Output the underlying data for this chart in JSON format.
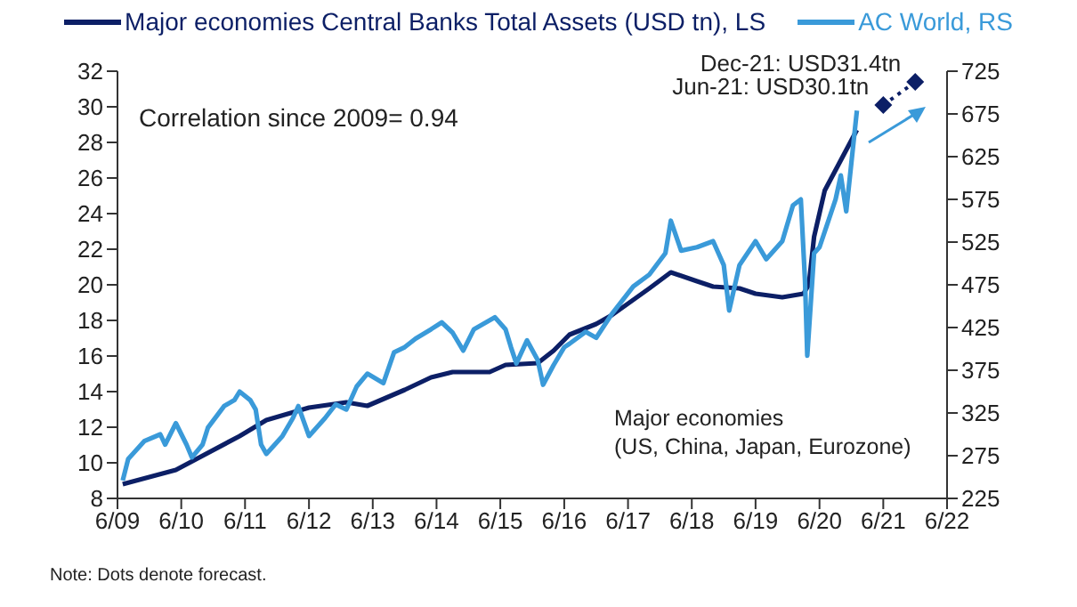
{
  "chart_data": {
    "type": "line",
    "xlim": [
      "2009-06",
      "2022-06"
    ],
    "xticks": [
      {
        "value": "2009-06",
        "label": "6/09"
      },
      {
        "value": "2010-06",
        "label": "6/10"
      },
      {
        "value": "2011-06",
        "label": "6/11"
      },
      {
        "value": "2012-06",
        "label": "6/12"
      },
      {
        "value": "2013-06",
        "label": "6/13"
      },
      {
        "value": "2014-06",
        "label": "6/14"
      },
      {
        "value": "2015-06",
        "label": "6/15"
      },
      {
        "value": "2016-06",
        "label": "6/16"
      },
      {
        "value": "2017-06",
        "label": "6/17"
      },
      {
        "value": "2018-06",
        "label": "6/18"
      },
      {
        "value": "2019-06",
        "label": "6/19"
      },
      {
        "value": "2020-06",
        "label": "6/20"
      },
      {
        "value": "2021-06",
        "label": "6/21"
      },
      {
        "value": "2022-06",
        "label": "6/22"
      }
    ],
    "ylim": [
      8,
      32
    ],
    "yticks": [
      8,
      10,
      12,
      14,
      16,
      18,
      20,
      22,
      24,
      26,
      28,
      30,
      32
    ],
    "y2lim": [
      225,
      725
    ],
    "y2ticks": [
      225,
      275,
      325,
      375,
      425,
      475,
      525,
      575,
      625,
      675,
      725
    ],
    "grid": false,
    "legend": "top",
    "series": [
      {
        "name": "Major economies Central Banks Total Assets (USD tn), LS",
        "color": "#0c1f66",
        "x": [
          "2009-07",
          "2010-05",
          "2011-05",
          "2011-10",
          "2012-06",
          "2013-01",
          "2013-05",
          "2013-12",
          "2014-05",
          "2014-09",
          "2015-04",
          "2015-07",
          "2016-01",
          "2016-04",
          "2016-07",
          "2016-12",
          "2017-03",
          "2017-10",
          "2018-02",
          "2018-07",
          "2018-10",
          "2019-03",
          "2019-06",
          "2019-11",
          "2020-03",
          "2020-04",
          "2020-05",
          "2020-07",
          "2020-10",
          "2021-01"
        ],
        "values": [
          8.8,
          9.6,
          11.5,
          12.4,
          13.1,
          13.4,
          13.2,
          14.1,
          14.8,
          15.1,
          15.1,
          15.5,
          15.6,
          16.3,
          17.2,
          17.8,
          18.3,
          19.8,
          20.7,
          20.2,
          19.9,
          19.8,
          19.5,
          19.3,
          19.5,
          20.0,
          22.7,
          25.3,
          27.0,
          28.7
        ]
      },
      {
        "name": "AC World, RS",
        "color": "#3a9ad9",
        "axis": "y2",
        "x": [
          "2009-07",
          "2009-08",
          "2009-11",
          "2010-02",
          "2010-03",
          "2010-05",
          "2010-07",
          "2010-08",
          "2010-10",
          "2010-11",
          "2011-02",
          "2011-04",
          "2011-05",
          "2011-07",
          "2011-08",
          "2011-09",
          "2011-10",
          "2012-01",
          "2012-03",
          "2012-04",
          "2012-06",
          "2012-09",
          "2012-11",
          "2013-01",
          "2013-03",
          "2013-05",
          "2013-08",
          "2013-10",
          "2013-12",
          "2014-02",
          "2014-05",
          "2014-07",
          "2014-09",
          "2014-11",
          "2015-01",
          "2015-05",
          "2015-07",
          "2015-08",
          "2015-09",
          "2015-11",
          "2016-01",
          "2016-02",
          "2016-04",
          "2016-06",
          "2016-07",
          "2016-10",
          "2016-12",
          "2017-03",
          "2017-07",
          "2017-10",
          "2018-01",
          "2018-02",
          "2018-04",
          "2018-07",
          "2018-10",
          "2018-12",
          "2019-01",
          "2019-03",
          "2019-06",
          "2019-08",
          "2019-11",
          "2020-01",
          "2020-02-15",
          "2020-03-10",
          "2020-03-23",
          "2020-05",
          "2020-06",
          "2020-09",
          "2020-10",
          "2020-11",
          "2021-01"
        ],
        "values": [
          246,
          271,
          292,
          300,
          288,
          313,
          288,
          273,
          288,
          308,
          333,
          340,
          350,
          340,
          329,
          288,
          277,
          298,
          319,
          333,
          298,
          319,
          335,
          329,
          356,
          371,
          360,
          396,
          402,
          412,
          423,
          431,
          419,
          398,
          423,
          437,
          423,
          402,
          383,
          410,
          387,
          358,
          381,
          402,
          406,
          420,
          413,
          441,
          473,
          487,
          512,
          550,
          515,
          519,
          526,
          498,
          445,
          498,
          526,
          505,
          526,
          568,
          575,
          480,
          392,
          512,
          519,
          575,
          603,
          561,
          679
        ]
      },
      {
        "color": "#0c1f66",
        "x": [
          "2021-06",
          "2021-12"
        ],
        "values": [
          30.1,
          31.4
        ],
        "line_style": "dotted",
        "marker": "diamond"
      }
    ],
    "annotations": [
      "Correlation since 2009= 0.94",
      "Major economies\n(US, China, Japan, Eurozone)",
      "Note: Dots denote forecast.",
      {
        "text": "Jun-21: USD30.1tn",
        "x": "2021-06",
        "y": 30.1
      },
      {
        "text": "Dec-21: USD31.4tn",
        "x": "2021-12",
        "y": 31.4
      }
    ]
  }
}
